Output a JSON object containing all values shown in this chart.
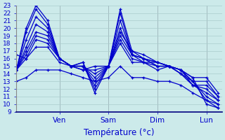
{
  "xlabel": "Température (°c)",
  "background_color": "#cceaea",
  "grid_color": "#aacccc",
  "line_color": "#0000cc",
  "ylim": [
    9,
    23
  ],
  "yticks": [
    9,
    10,
    11,
    12,
    13,
    14,
    15,
    16,
    17,
    18,
    19,
    20,
    21,
    22,
    23
  ],
  "x_tick_positions": [
    0.22,
    0.47,
    0.72,
    0.97
  ],
  "x_tick_labels": [
    "Ven",
    "Sam",
    "Dim",
    "Lun"
  ],
  "xlim": [
    0.0,
    1.05
  ],
  "series": [
    {
      "x": [
        0.0,
        0.05,
        0.1,
        0.16,
        0.22,
        0.28,
        0.34,
        0.4,
        0.47,
        0.53,
        0.59,
        0.65,
        0.72,
        0.78,
        0.84,
        0.9,
        0.97,
        1.03
      ],
      "y": [
        14.5,
        20.0,
        23.0,
        21.0,
        16.0,
        15.0,
        15.5,
        11.5,
        15.0,
        22.5,
        17.0,
        16.5,
        15.5,
        15.0,
        14.5,
        13.5,
        10.0,
        9.5
      ]
    },
    {
      "x": [
        0.0,
        0.05,
        0.1,
        0.16,
        0.22,
        0.28,
        0.34,
        0.4,
        0.47,
        0.53,
        0.59,
        0.65,
        0.72,
        0.78,
        0.84,
        0.9,
        0.97,
        1.03
      ],
      "y": [
        14.5,
        19.5,
        22.5,
        20.5,
        16.0,
        15.0,
        15.5,
        12.0,
        15.0,
        22.0,
        16.5,
        16.0,
        15.5,
        15.0,
        14.5,
        13.0,
        10.5,
        10.0
      ]
    },
    {
      "x": [
        0.0,
        0.05,
        0.1,
        0.16,
        0.22,
        0.28,
        0.34,
        0.4,
        0.47,
        0.53,
        0.59,
        0.65,
        0.72,
        0.78,
        0.84,
        0.9,
        0.97,
        1.03
      ],
      "y": [
        14.5,
        18.5,
        21.5,
        20.0,
        16.0,
        15.0,
        15.0,
        12.5,
        15.0,
        21.0,
        16.5,
        16.0,
        15.0,
        15.0,
        14.0,
        13.0,
        11.0,
        10.0
      ]
    },
    {
      "x": [
        0.0,
        0.05,
        0.1,
        0.16,
        0.22,
        0.28,
        0.34,
        0.4,
        0.47,
        0.53,
        0.59,
        0.65,
        0.72,
        0.78,
        0.84,
        0.9,
        0.97,
        1.03
      ],
      "y": [
        14.5,
        17.5,
        20.5,
        19.5,
        16.0,
        15.0,
        15.0,
        13.0,
        15.0,
        20.0,
        16.5,
        16.0,
        15.0,
        15.0,
        14.0,
        12.5,
        11.5,
        10.5
      ]
    },
    {
      "x": [
        0.0,
        0.05,
        0.1,
        0.16,
        0.22,
        0.28,
        0.34,
        0.4,
        0.47,
        0.53,
        0.59,
        0.65,
        0.72,
        0.78,
        0.84,
        0.9,
        0.97,
        1.03
      ],
      "y": [
        14.5,
        17.0,
        19.5,
        19.0,
        16.0,
        15.0,
        15.0,
        13.5,
        15.0,
        19.5,
        17.0,
        16.0,
        15.5,
        15.0,
        14.0,
        12.5,
        12.0,
        10.5
      ]
    },
    {
      "x": [
        0.0,
        0.05,
        0.1,
        0.16,
        0.22,
        0.28,
        0.34,
        0.4,
        0.47,
        0.53,
        0.59,
        0.65,
        0.72,
        0.78,
        0.84,
        0.9,
        0.97,
        1.03
      ],
      "y": [
        14.5,
        16.5,
        19.0,
        18.5,
        16.0,
        15.0,
        15.0,
        14.0,
        15.0,
        19.0,
        16.5,
        15.5,
        15.5,
        15.0,
        14.5,
        12.5,
        12.5,
        11.0
      ]
    },
    {
      "x": [
        0.0,
        0.05,
        0.1,
        0.16,
        0.22,
        0.28,
        0.34,
        0.4,
        0.47,
        0.53,
        0.59,
        0.65,
        0.72,
        0.78,
        0.84,
        0.9,
        0.97,
        1.03
      ],
      "y": [
        14.5,
        16.0,
        18.5,
        18.0,
        16.0,
        15.0,
        14.5,
        14.5,
        15.0,
        18.5,
        16.0,
        15.5,
        15.0,
        15.0,
        14.5,
        13.0,
        13.0,
        11.0
      ]
    },
    {
      "x": [
        0.0,
        0.05,
        0.1,
        0.16,
        0.22,
        0.28,
        0.34,
        0.4,
        0.47,
        0.53,
        0.59,
        0.65,
        0.72,
        0.78,
        0.84,
        0.9,
        0.97,
        1.03
      ],
      "y": [
        16.5,
        16.0,
        17.5,
        17.5,
        15.5,
        15.0,
        14.5,
        15.0,
        15.0,
        18.0,
        15.5,
        15.5,
        14.5,
        15.0,
        14.5,
        13.5,
        13.5,
        11.5
      ]
    },
    {
      "x": [
        0.0,
        0.05,
        0.1,
        0.16,
        0.22,
        0.28,
        0.34,
        0.4,
        0.47,
        0.53,
        0.59,
        0.65,
        0.72,
        0.78,
        0.84,
        0.9,
        0.97,
        1.03
      ],
      "y": [
        13.0,
        13.5,
        14.5,
        14.5,
        14.5,
        14.0,
        13.5,
        13.0,
        13.5,
        15.0,
        13.5,
        13.5,
        13.0,
        13.0,
        12.5,
        11.5,
        10.5,
        9.5
      ]
    }
  ]
}
